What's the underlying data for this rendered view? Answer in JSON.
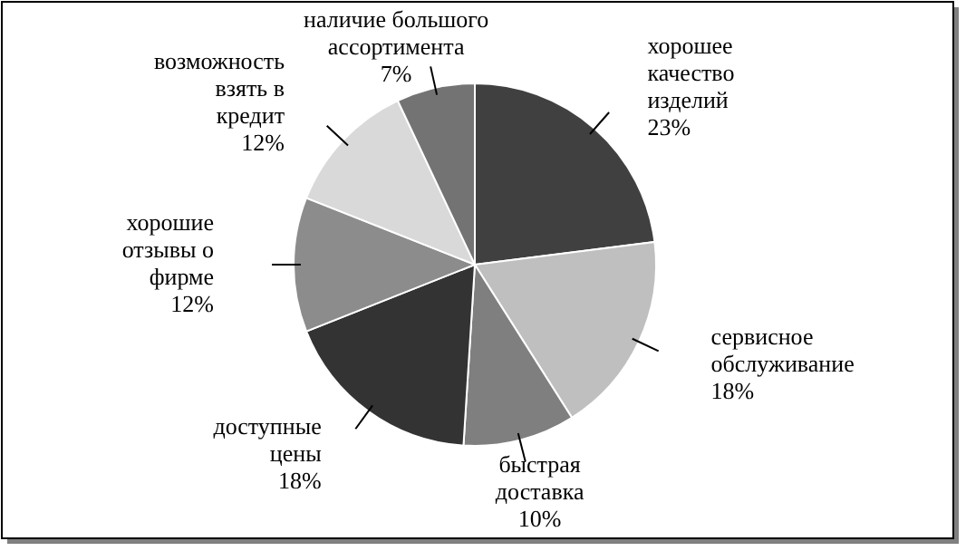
{
  "chart_data": {
    "type": "pie",
    "categories": [
      "хорошее качество изделий",
      "сервисное обслуживание",
      "быстрая доставка",
      "доступные цены",
      "хорошие отзывы о фирме",
      "возможность взять в кредит",
      "наличие большого ассортимента"
    ],
    "values": [
      23,
      18,
      10,
      18,
      12,
      12,
      7
    ],
    "value_labels": [
      "23%",
      "18%",
      "10%",
      "18%",
      "12%",
      "12%",
      "7%"
    ],
    "colors": [
      "#404040",
      "#bfbfbf",
      "#7f7f7f",
      "#333333",
      "#8c8c8c",
      "#d9d9d9",
      "#737373"
    ]
  }
}
